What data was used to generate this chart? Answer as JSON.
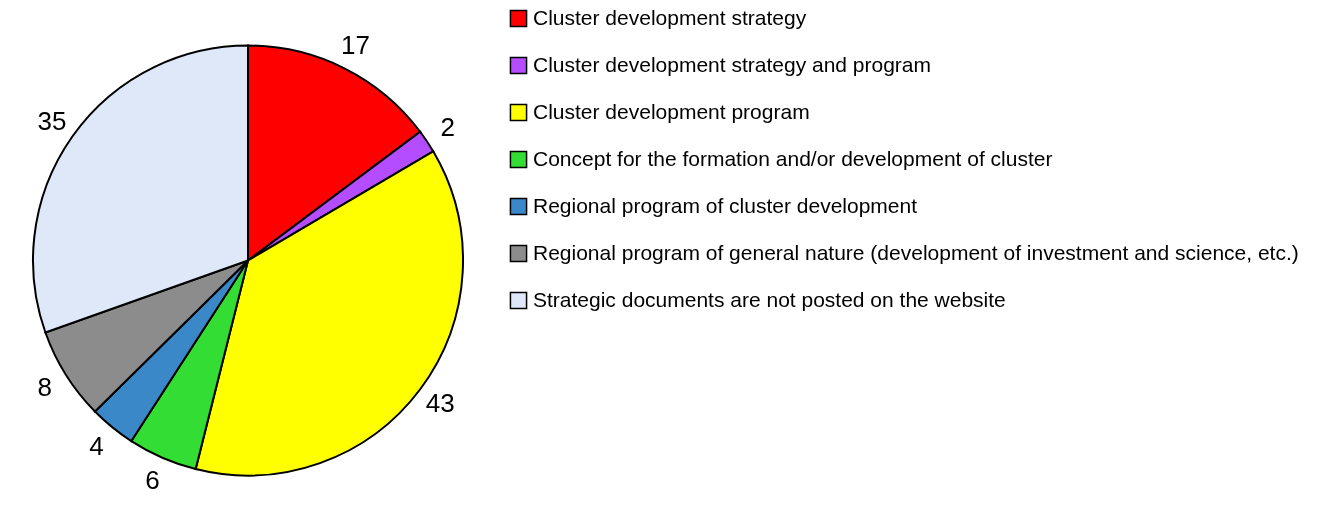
{
  "chart_data": {
    "type": "pie",
    "categories": [
      "Cluster development strategy",
      "Cluster development strategy and program",
      "Cluster development program",
      "Concept for the formation and/or development of cluster",
      "Regional program of cluster development",
      "Regional program of general nature (development of investment and science, etc.)",
      "Strategic documents are not posted on the website"
    ],
    "values": [
      17,
      2,
      43,
      6,
      4,
      8,
      35
    ],
    "colors": [
      "#ff0000",
      "#b44cff",
      "#ffff00",
      "#33dd33",
      "#3a88c8",
      "#8c8c8c",
      "#dfe8f8"
    ],
    "data_labels": true,
    "legend": "right"
  }
}
